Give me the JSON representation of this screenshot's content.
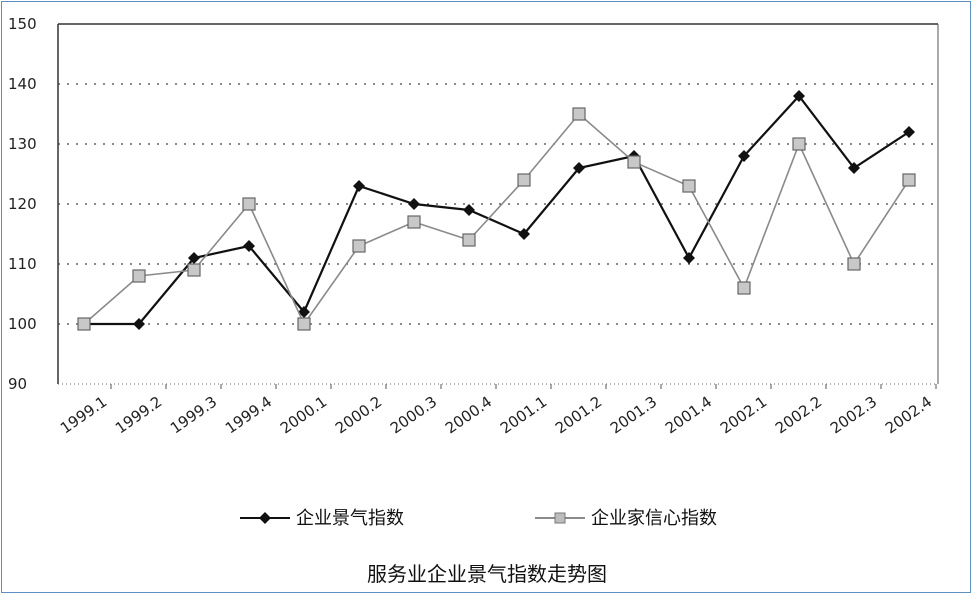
{
  "chart_data": {
    "type": "line",
    "title": "服务业企业景气指数走势图",
    "categories": [
      "1999.1",
      "1999.2",
      "1999.3",
      "1999.4",
      "2000.1",
      "2000.2",
      "2000.3",
      "2000.4",
      "2001.1",
      "2001.2",
      "2001.3",
      "2001.4",
      "2002.1",
      "2002.2",
      "2002.3",
      "2002.4"
    ],
    "series": [
      {
        "name": "企业景气指数",
        "color": "#111111",
        "marker": "diamond",
        "values": [
          100,
          100,
          111,
          113,
          102,
          123,
          120,
          119,
          115,
          126,
          128,
          111,
          128,
          138,
          126,
          132
        ]
      },
      {
        "name": "企业家信心指数",
        "color": "#8a8a8a",
        "marker": "square",
        "values": [
          100,
          108,
          109,
          120,
          100,
          113,
          117,
          114,
          124,
          135,
          127,
          123,
          106,
          130,
          110,
          124
        ]
      }
    ],
    "ylim": [
      90,
      150
    ],
    "yticks": [
      90,
      100,
      110,
      120,
      130,
      140,
      150
    ],
    "grid": true,
    "legend": "bottom"
  }
}
